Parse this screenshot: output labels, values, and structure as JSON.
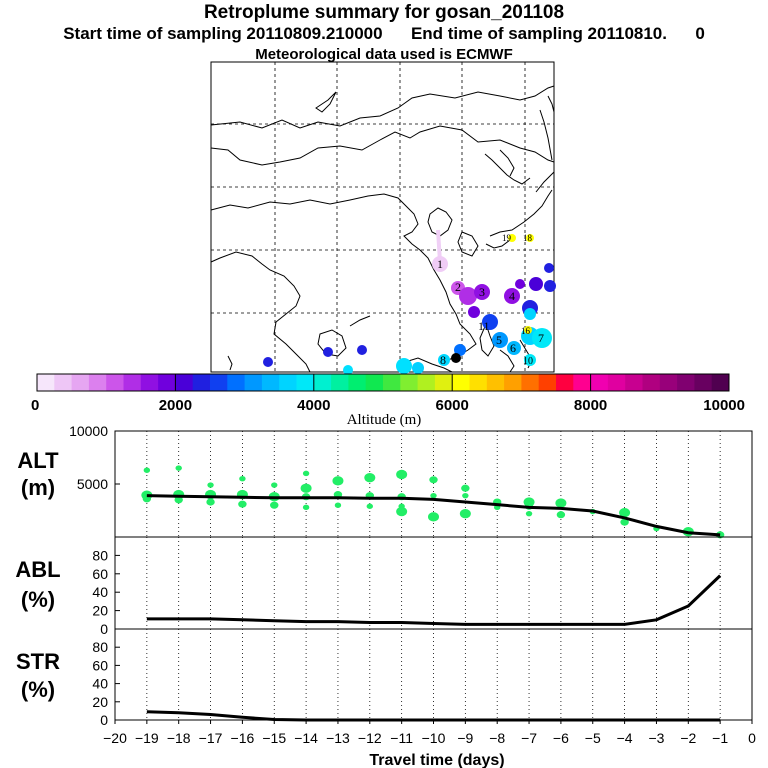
{
  "header": {
    "title": "Retroplume summary for gosan_201108",
    "start_label": "Start time of sampling 20110809.210000",
    "end_label": "End time of sampling 20110810.",
    "end_suffix": "0",
    "met_label": "Meteorological data used is ECMWF"
  },
  "colors": {
    "line": "#000000",
    "points": "#22ee66",
    "grid": "#000000"
  },
  "colorbar": {
    "label": "Altitude  (m)",
    "min": 0,
    "max": 10000,
    "ticks": [
      "0",
      "2000",
      "4000",
      "6000",
      "8000",
      "10000"
    ],
    "colors": [
      "#f6e6fb",
      "#eec6f6",
      "#e6a6f2",
      "#dc80ee",
      "#cc55ea",
      "#b02ee6",
      "#9010e2",
      "#7000dd",
      "#4a00d8",
      "#2020e0",
      "#1040f0",
      "#0070ff",
      "#0098ff",
      "#00b8ff",
      "#00d4ff",
      "#00e8f8",
      "#00f0d0",
      "#00f0a0",
      "#00ee70",
      "#10e850",
      "#40e840",
      "#80ee30",
      "#b0f020",
      "#e0f010",
      "#ffff00",
      "#ffe000",
      "#ffc000",
      "#ffa000",
      "#ff7000",
      "#ff4000",
      "#ff0040",
      "#ff0090",
      "#f000b0",
      "#e000a0",
      "#c80090",
      "#b00080",
      "#98007a",
      "#800070",
      "#680060",
      "#500050"
    ]
  },
  "map_labels": [
    {
      "text": "1",
      "color": "#f0ccf6"
    },
    {
      "text": "2",
      "color": "#c040e0"
    },
    {
      "text": "3",
      "color": "#a020e0"
    },
    {
      "text": "4",
      "color": "#8010e0"
    },
    {
      "text": "5",
      "color": "#00a0ff"
    },
    {
      "text": "6",
      "color": "#00b0ff"
    },
    {
      "text": "7",
      "color": "#00c8ff"
    },
    {
      "text": "8",
      "color": "#00d8ff"
    },
    {
      "text": "9",
      "color": "#000000"
    },
    {
      "text": "10",
      "color": "#00e0ff"
    },
    {
      "text": "11",
      "color": "#00d0ff"
    },
    {
      "text": "16",
      "color": "#f0f000"
    },
    {
      "text": "18",
      "color": "#ffff00"
    },
    {
      "text": "19",
      "color": "#ffff00"
    }
  ],
  "chart_data": [
    {
      "type": "scatter",
      "id": "alt",
      "panel_label": "ALT",
      "unit_label": "(m)",
      "ylim": [
        0,
        10000
      ],
      "yticks": [
        "10000",
        "5000"
      ],
      "x": [
        -19,
        -18,
        -17,
        -16,
        -15,
        -14,
        -13,
        -12,
        -11,
        -10,
        -9,
        -8,
        -7,
        -6,
        -5,
        -4,
        -3,
        -2,
        -1
      ],
      "line_values": [
        3900,
        3850,
        3800,
        3750,
        3700,
        3700,
        3700,
        3650,
        3650,
        3550,
        3300,
        3050,
        2800,
        2700,
        2450,
        1800,
        1000,
        400,
        200
      ],
      "points": [
        {
          "x": -19,
          "y": 6300
        },
        {
          "x": -19,
          "y": 3950
        },
        {
          "x": -19,
          "y": 3600
        },
        {
          "x": -18,
          "y": 6500
        },
        {
          "x": -18,
          "y": 4000
        },
        {
          "x": -18,
          "y": 3500
        },
        {
          "x": -17,
          "y": 4900
        },
        {
          "x": -17,
          "y": 4000
        },
        {
          "x": -17,
          "y": 3300
        },
        {
          "x": -16,
          "y": 5500
        },
        {
          "x": -16,
          "y": 4000
        },
        {
          "x": -16,
          "y": 3100
        },
        {
          "x": -15,
          "y": 4900
        },
        {
          "x": -15,
          "y": 3800
        },
        {
          "x": -15,
          "y": 3000
        },
        {
          "x": -14,
          "y": 6000
        },
        {
          "x": -14,
          "y": 4600
        },
        {
          "x": -14,
          "y": 3800
        },
        {
          "x": -14,
          "y": 2800
        },
        {
          "x": -13,
          "y": 5300
        },
        {
          "x": -13,
          "y": 4000
        },
        {
          "x": -13,
          "y": 3000
        },
        {
          "x": -12,
          "y": 5600
        },
        {
          "x": -12,
          "y": 3900
        },
        {
          "x": -12,
          "y": 2900
        },
        {
          "x": -11,
          "y": 5900
        },
        {
          "x": -11,
          "y": 3800
        },
        {
          "x": -11,
          "y": 2900
        },
        {
          "x": -11,
          "y": 2400
        },
        {
          "x": -10,
          "y": 5400
        },
        {
          "x": -10,
          "y": 3900
        },
        {
          "x": -10,
          "y": 1900
        },
        {
          "x": -9,
          "y": 4600
        },
        {
          "x": -9,
          "y": 3900
        },
        {
          "x": -9,
          "y": 2200
        },
        {
          "x": -8,
          "y": 3300
        },
        {
          "x": -8,
          "y": 2800
        },
        {
          "x": -7,
          "y": 3300
        },
        {
          "x": -7,
          "y": 2900
        },
        {
          "x": -7,
          "y": 2200
        },
        {
          "x": -6,
          "y": 3200
        },
        {
          "x": -6,
          "y": 2100
        },
        {
          "x": -5,
          "y": 2400
        },
        {
          "x": -4,
          "y": 2300
        },
        {
          "x": -4,
          "y": 1400
        },
        {
          "x": -3,
          "y": 800
        },
        {
          "x": -2,
          "y": 500
        },
        {
          "x": -1,
          "y": 200
        }
      ]
    },
    {
      "type": "line",
      "id": "abl",
      "panel_label": "ABL",
      "unit_label": "(%)",
      "ylim": [
        0,
        100
      ],
      "yticks": [
        "80",
        "60",
        "40",
        "20",
        "0"
      ],
      "x": [
        -19,
        -18,
        -17,
        -16,
        -15,
        -14,
        -13,
        -12,
        -11,
        -10,
        -9,
        -8,
        -7,
        -6,
        -5,
        -4,
        -3,
        -2,
        -1
      ],
      "values": [
        11,
        11,
        11,
        10,
        9,
        8,
        8,
        7,
        7,
        6,
        5,
        5,
        5,
        5,
        5,
        5,
        10,
        25,
        58
      ]
    },
    {
      "type": "line",
      "id": "str",
      "panel_label": "STR",
      "unit_label": "(%)",
      "ylim": [
        0,
        100
      ],
      "yticks": [
        "80",
        "60",
        "40",
        "20",
        "0"
      ],
      "x": [
        -19,
        -18,
        -17,
        -16,
        -15,
        -14,
        -13,
        -12,
        -11,
        -10,
        -9,
        -8,
        -7,
        -6,
        -5,
        -4,
        -3,
        -2,
        -1
      ],
      "values": [
        9,
        8,
        6,
        3,
        0.5,
        0,
        0,
        0,
        0,
        0,
        0,
        0,
        0,
        0,
        0,
        0,
        0,
        0,
        0
      ]
    }
  ],
  "xaxis": {
    "label": "Travel time (days)",
    "ticks": [
      "−20",
      "−19",
      "−18",
      "−17",
      "−16",
      "−15",
      "−14",
      "−13",
      "−12",
      "−11",
      "−10",
      "−9",
      "−8",
      "−7",
      "−6",
      "−5",
      "−4",
      "−3",
      "−2",
      "−1",
      "0"
    ]
  }
}
